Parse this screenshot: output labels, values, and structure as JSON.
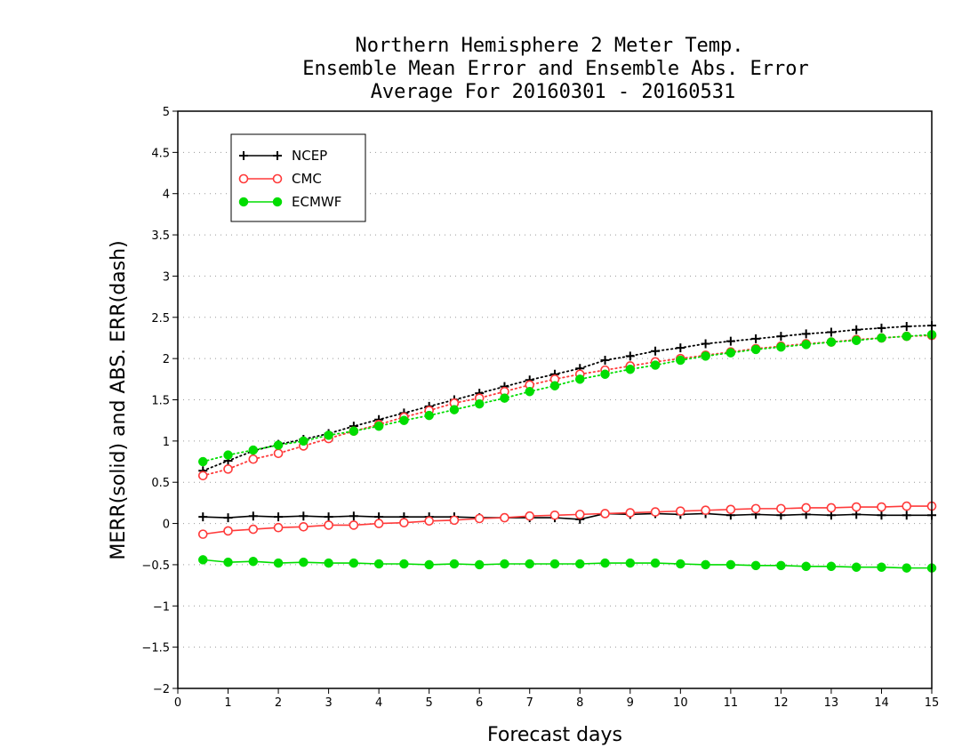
{
  "chart_data": {
    "type": "line",
    "title_lines": [
      "Northern Hemisphere 2 Meter Temp.",
      "Ensemble Mean Error and Ensemble Abs. Error",
      "Average For 20160301 - 20160531"
    ],
    "xlabel": "Forecast days",
    "ylabel": "MERR(solid) and ABS. ERR(dash)",
    "xlim": [
      0,
      15
    ],
    "ylim": [
      -2,
      5
    ],
    "x_ticks": [
      "0",
      "1",
      "2",
      "3",
      "4",
      "5",
      "6",
      "7",
      "8",
      "9",
      "10",
      "11",
      "12",
      "13",
      "14",
      "15"
    ],
    "y_ticks": [
      "-2",
      "-1.5",
      "-1",
      "-0.5",
      "0",
      "0.5",
      "1",
      "1.5",
      "2",
      "2.5",
      "3",
      "3.5",
      "4",
      "4.5",
      "5"
    ],
    "grid": "horizontal dotted",
    "legend_position": "top-left",
    "x": [
      0.5,
      1,
      1.5,
      2,
      2.5,
      3,
      3.5,
      4,
      4.5,
      5,
      5.5,
      6,
      6.5,
      7,
      7.5,
      8,
      8.5,
      9,
      9.5,
      10,
      10.5,
      11,
      11.5,
      12,
      12.5,
      13,
      13.5,
      14,
      14.5,
      15
    ],
    "series": [
      {
        "name": "NCEP",
        "color": "#000000",
        "marker": "plus",
        "merr": [
          0.08,
          0.07,
          0.09,
          0.08,
          0.09,
          0.08,
          0.09,
          0.08,
          0.08,
          0.08,
          0.08,
          0.07,
          0.07,
          0.07,
          0.07,
          0.05,
          0.12,
          0.11,
          0.12,
          0.11,
          0.12,
          0.1,
          0.11,
          0.1,
          0.11,
          0.1,
          0.11,
          0.1,
          0.1,
          0.1
        ],
        "abs_err": [
          0.64,
          0.76,
          0.88,
          0.96,
          1.02,
          1.09,
          1.18,
          1.26,
          1.34,
          1.42,
          1.5,
          1.58,
          1.66,
          1.74,
          1.81,
          1.88,
          1.98,
          2.03,
          2.09,
          2.13,
          2.18,
          2.21,
          2.24,
          2.27,
          2.3,
          2.32,
          2.35,
          2.37,
          2.39,
          2.4
        ]
      },
      {
        "name": "CMC",
        "color": "#ff3a3a",
        "marker": "open-circle",
        "merr": [
          -0.13,
          -0.09,
          -0.07,
          -0.05,
          -0.04,
          -0.02,
          -0.02,
          0.0,
          0.01,
          0.03,
          0.04,
          0.06,
          0.07,
          0.09,
          0.1,
          0.11,
          0.12,
          0.13,
          0.14,
          0.15,
          0.16,
          0.17,
          0.18,
          0.18,
          0.19,
          0.19,
          0.2,
          0.2,
          0.21,
          0.21
        ],
        "abs_err": [
          0.58,
          0.66,
          0.78,
          0.85,
          0.94,
          1.03,
          1.12,
          1.2,
          1.29,
          1.37,
          1.46,
          1.52,
          1.6,
          1.68,
          1.75,
          1.81,
          1.86,
          1.91,
          1.96,
          2.0,
          2.04,
          2.08,
          2.12,
          2.15,
          2.18,
          2.2,
          2.23,
          2.25,
          2.27,
          2.28
        ]
      },
      {
        "name": "ECMWF",
        "color": "#00dd00",
        "marker": "filled-circle",
        "merr": [
          -0.44,
          -0.47,
          -0.46,
          -0.48,
          -0.47,
          -0.48,
          -0.48,
          -0.49,
          -0.49,
          -0.5,
          -0.49,
          -0.5,
          -0.49,
          -0.49,
          -0.49,
          -0.49,
          -0.48,
          -0.48,
          -0.48,
          -0.49,
          -0.5,
          -0.5,
          -0.51,
          -0.51,
          -0.52,
          -0.52,
          -0.53,
          -0.53,
          -0.54,
          -0.54
        ],
        "abs_err": [
          0.75,
          0.83,
          0.89,
          0.95,
          1.0,
          1.07,
          1.12,
          1.18,
          1.25,
          1.31,
          1.38,
          1.45,
          1.52,
          1.6,
          1.67,
          1.75,
          1.81,
          1.87,
          1.92,
          1.98,
          2.03,
          2.07,
          2.11,
          2.14,
          2.17,
          2.2,
          2.22,
          2.25,
          2.27,
          2.29
        ]
      }
    ]
  }
}
